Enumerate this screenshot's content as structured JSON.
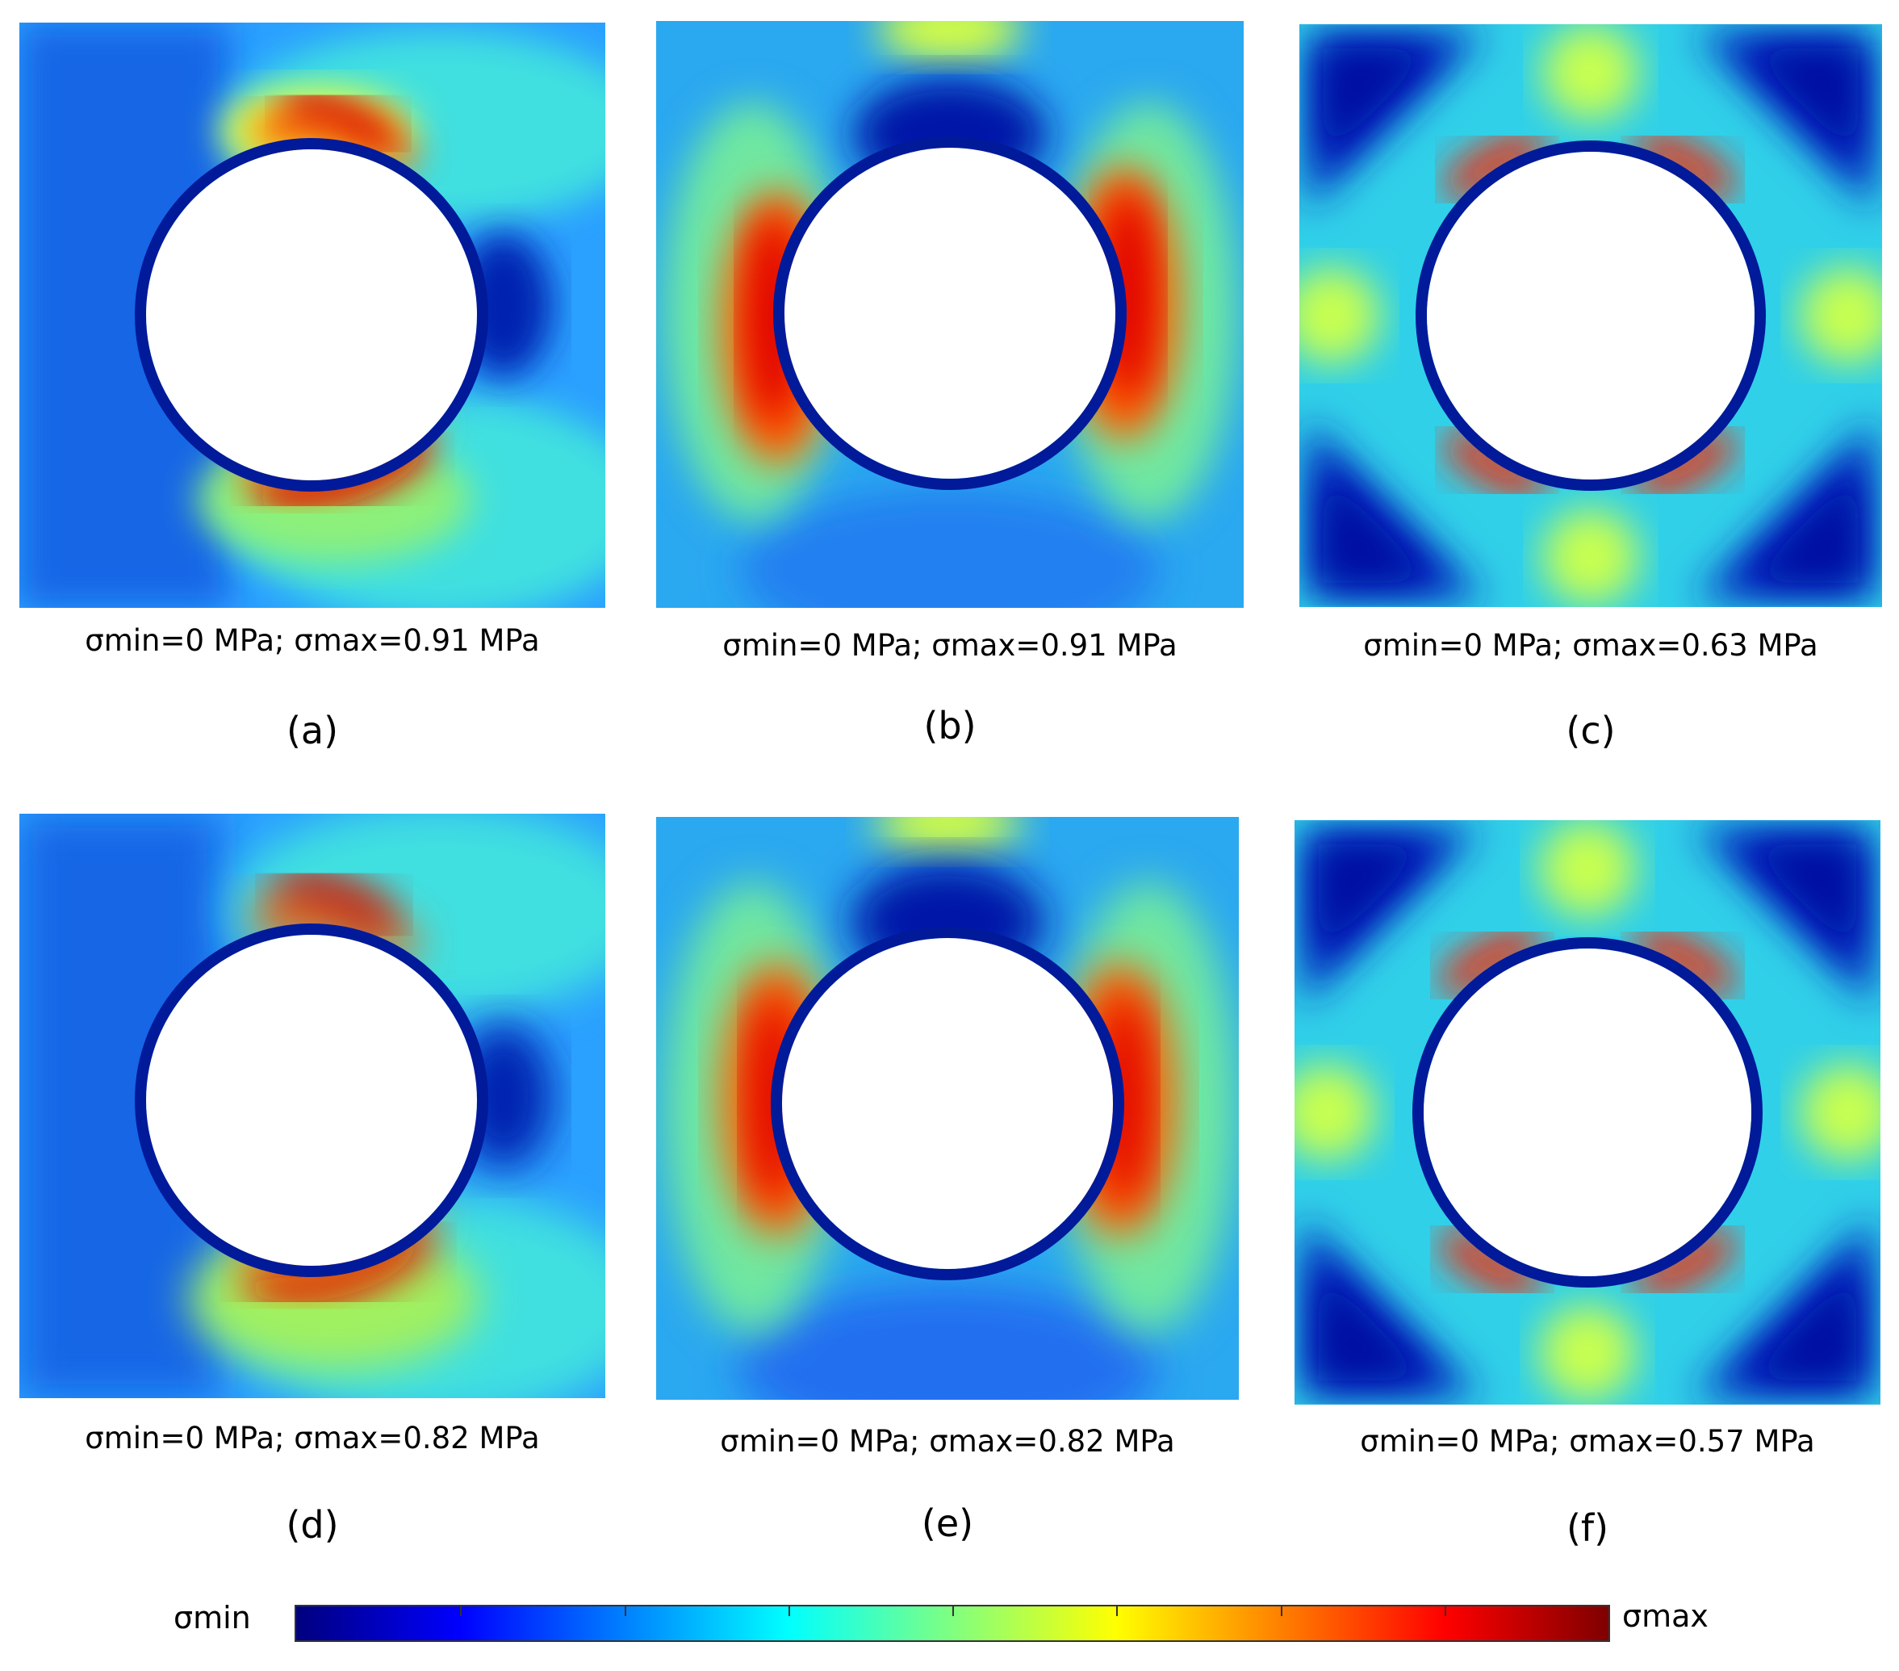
{
  "panels": [
    {
      "id": "a",
      "label": "(a)",
      "caption": "σmin=0 MPa; σmax=0.91 MPa",
      "pattern": "shifted"
    },
    {
      "id": "b",
      "label": "(b)",
      "caption": "σmin=0 MPa; σmax=0.91 MPa",
      "pattern": "lateral"
    },
    {
      "id": "c",
      "label": "(c)",
      "caption": "σmin=0 MPa; σmax=0.63 MPa",
      "pattern": "diagonal"
    },
    {
      "id": "d",
      "label": "(d)",
      "caption": "σmin=0 MPa; σmax=0.82 MPa",
      "pattern": "shifted"
    },
    {
      "id": "e",
      "label": "(e)",
      "caption": "σmin=0 MPa; σmax=0.82 MPa",
      "pattern": "lateral"
    },
    {
      "id": "f",
      "label": "(f)",
      "caption": "σmin=0 MPa; σmax=0.57 MPa",
      "pattern": "diagonal"
    }
  ],
  "colorbar": {
    "min_label": "σmin",
    "max_label": "σmax",
    "colormap": "jet",
    "colors": [
      "#00007f",
      "#0000ff",
      "#0080ff",
      "#00ffff",
      "#80ff80",
      "#ffff00",
      "#ff8000",
      "#ff0000",
      "#7f0000"
    ]
  }
}
